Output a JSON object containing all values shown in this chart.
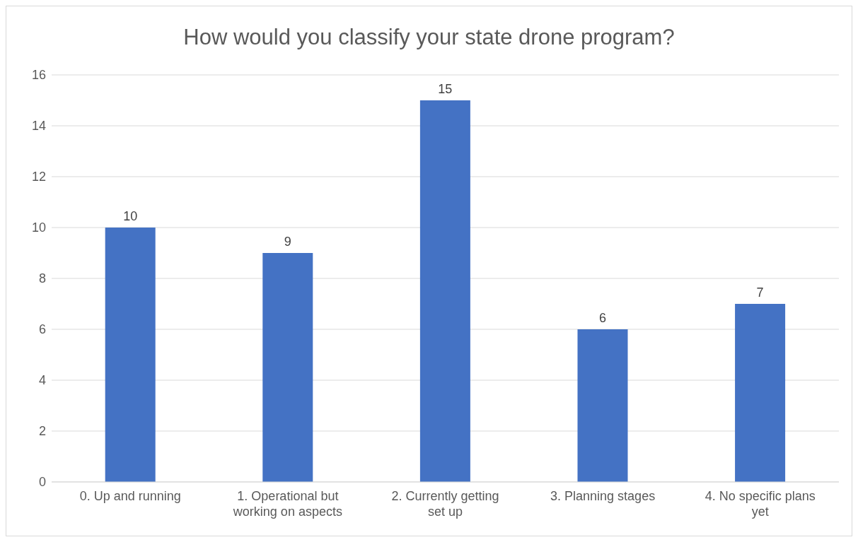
{
  "chart_data": {
    "type": "bar",
    "title": "How would you classify your state drone program?",
    "categories": [
      "0. Up and running",
      "1. Operational but working on aspects",
      "2. Currently getting set up",
      "3. Planning stages",
      "4. No specific plans yet"
    ],
    "values": [
      10,
      9,
      15,
      6,
      7
    ],
    "color": "#4472c4",
    "ylim": [
      0,
      16
    ],
    "yticks": [
      0,
      2,
      4,
      6,
      8,
      10,
      12,
      14,
      16
    ],
    "grid": "y",
    "data_labels": true
  }
}
